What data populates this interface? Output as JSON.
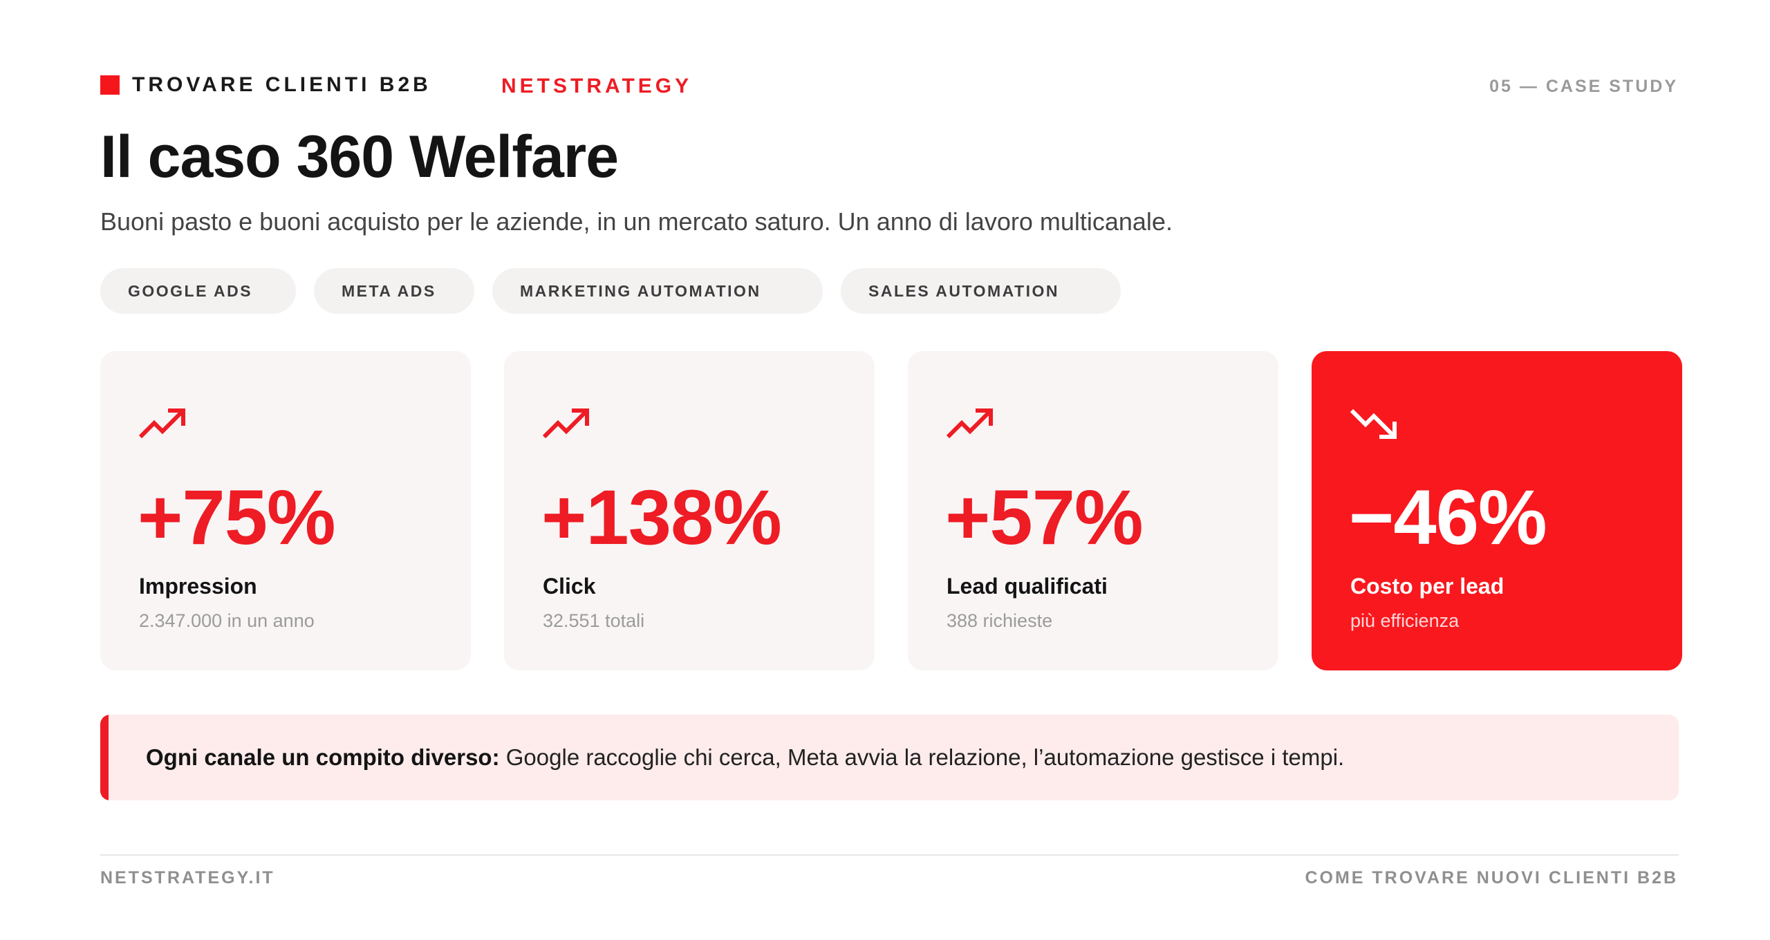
{
  "header": {
    "brand": "TROVARE CLIENTI B2B",
    "partner": "NETSTRATEGY",
    "section": "05 — CASE STUDY"
  },
  "title": "Il caso 360 Welfare",
  "subtitle": "Buoni pasto e buoni acquisto per le aziende, in un mercato saturo. Un anno di lavoro multicanale.",
  "tags": [
    "GOOGLE ADS",
    "META ADS",
    "MARKETING AUTOMATION",
    "SALES AUTOMATION"
  ],
  "stats": [
    {
      "value": "+75%",
      "label": "Impression",
      "sub": "2.347.000 in un anno",
      "icon": "trending-up-icon"
    },
    {
      "value": "+138%",
      "label": "Click",
      "sub": "32.551 totali",
      "icon": "trending-up-icon"
    },
    {
      "value": "+57%",
      "label": "Lead qualificati",
      "sub": "388 richieste",
      "icon": "trending-up-icon"
    },
    {
      "value": "−46%",
      "label": "Costo per lead",
      "sub": "più efficienza",
      "icon": "trending-down-icon"
    }
  ],
  "callout": {
    "lead": "Ogni canale un compito diverso:",
    "body": " Google raccoglie chi cerca, Meta avvia la relazione, l’automazione gestisce i tempi."
  },
  "footer": {
    "left": "NETSTRATEGY.IT",
    "right": "COME TROVARE NUOVI CLIENTI B2B"
  },
  "colors": {
    "accent": "#ee1c24",
    "highlight_card": "#f9181e",
    "card_bg": "#f9f5f5",
    "callout_bg": "#feebec"
  }
}
